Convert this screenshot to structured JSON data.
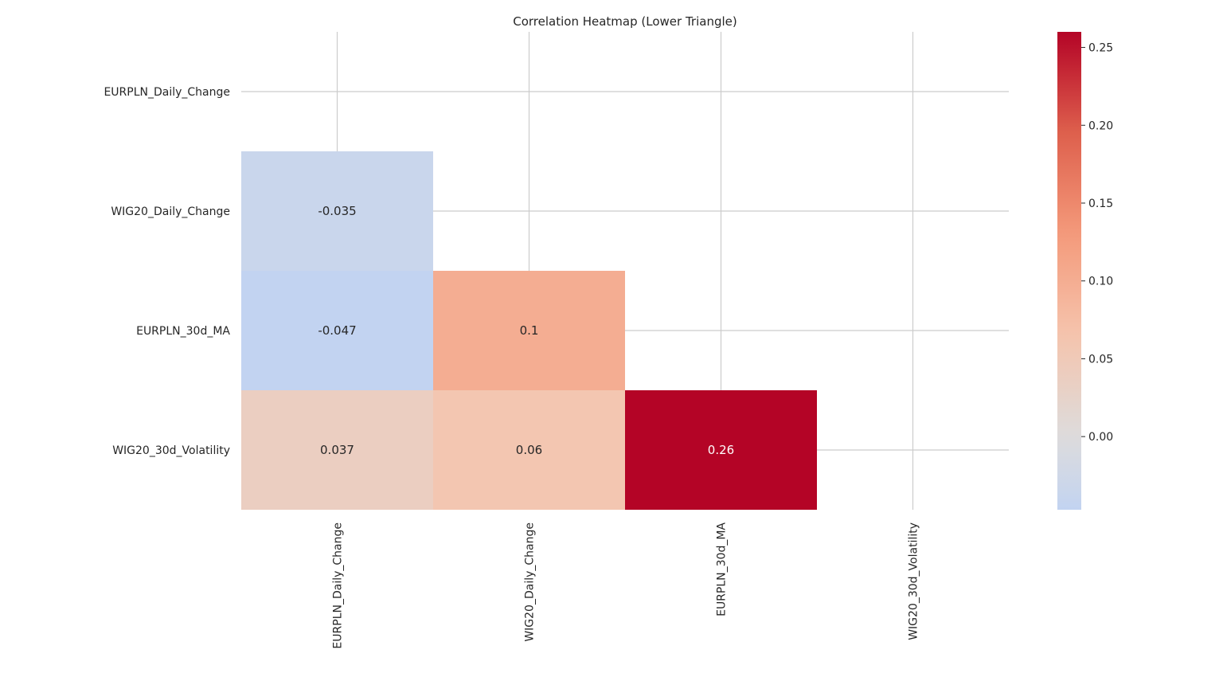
{
  "chart_data": {
    "type": "heatmap",
    "title": "Correlation Heatmap (Lower Triangle)",
    "variables": [
      "EURPLN_Daily_Change",
      "WIG20_Daily_Change",
      "EURPLN_30d_MA",
      "WIG20_30d_Volatility"
    ],
    "cells": [
      {
        "row": 1,
        "col": 0,
        "value": -0.035,
        "label": "-0.035"
      },
      {
        "row": 2,
        "col": 0,
        "value": -0.047,
        "label": "-0.047"
      },
      {
        "row": 2,
        "col": 1,
        "value": 0.1,
        "label": "0.1"
      },
      {
        "row": 3,
        "col": 0,
        "value": 0.037,
        "label": "0.037"
      },
      {
        "row": 3,
        "col": 1,
        "value": 0.06,
        "label": "0.06"
      },
      {
        "row": 3,
        "col": 2,
        "value": 0.26,
        "label": "0.26"
      }
    ],
    "mask": "upper-triangle-and-diagonal",
    "colormap": "coolwarm",
    "vmin": -0.047,
    "vmax": 0.26,
    "center": 0,
    "colorbar": {
      "ticks": [
        0.0,
        0.05,
        0.1,
        0.15,
        0.2,
        0.25
      ],
      "tick_labels": [
        "0.00",
        "0.05",
        "0.10",
        "0.15",
        "0.20",
        "0.25"
      ]
    },
    "grid": true,
    "grid_color": "#cccccc"
  }
}
